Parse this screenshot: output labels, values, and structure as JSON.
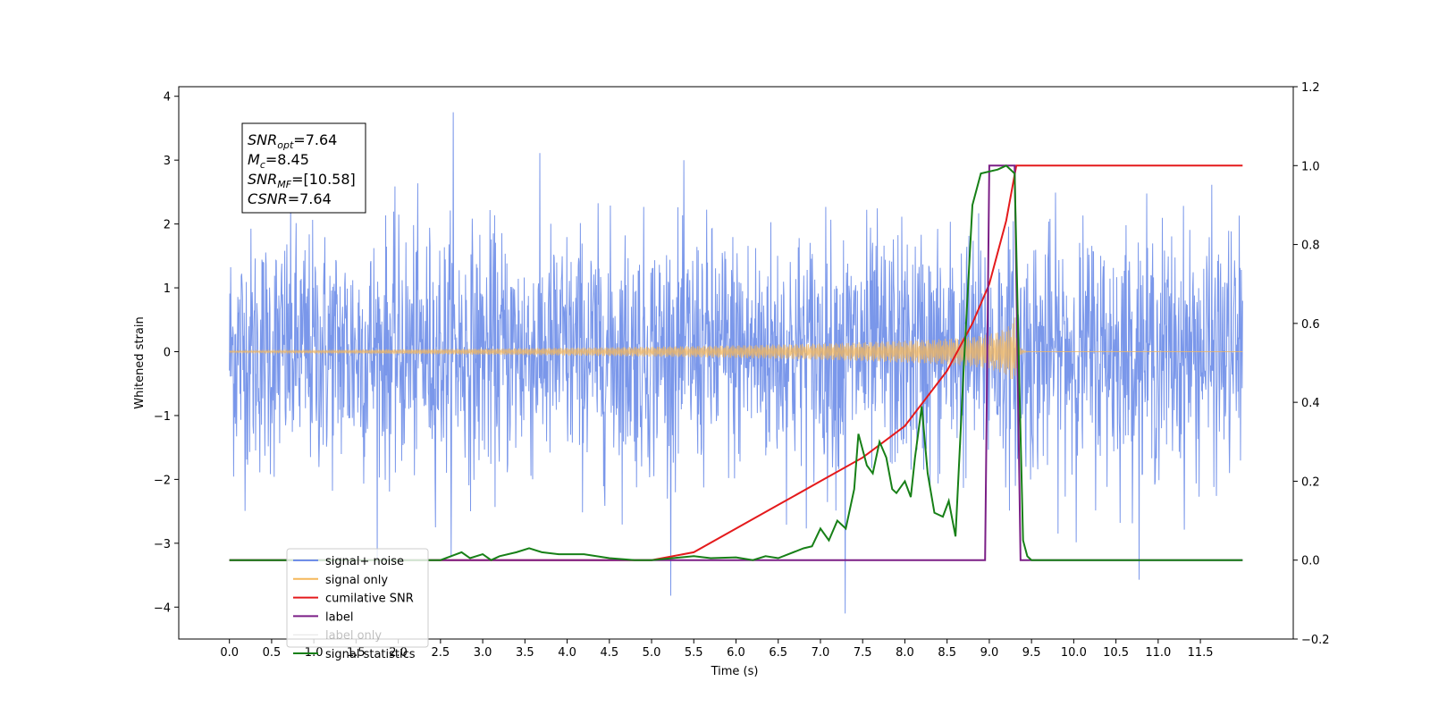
{
  "chart_data": {
    "type": "line",
    "title": "",
    "xlabel": "Time (s)",
    "ylabel": "Whitened strain",
    "xlim": [
      -0.6,
      12.6
    ],
    "ylim": [
      -4.5,
      4.15
    ],
    "y2lim": [
      -0.2,
      1.2
    ],
    "grid": false,
    "legend_position": "lower-left",
    "x_ticks": [
      "0.0",
      "0.5",
      "1.0",
      "1.5",
      "2.0",
      "2.5",
      "3.0",
      "3.5",
      "4.0",
      "4.5",
      "5.0",
      "5.5",
      "6.0",
      "6.5",
      "7.0",
      "7.5",
      "8.0",
      "8.5",
      "9.0",
      "9.5",
      "10.0",
      "10.5",
      "11.0",
      "11.5"
    ],
    "y_ticks": [
      "4",
      "3",
      "2",
      "1",
      "0",
      "−1",
      "−2",
      "−3",
      "−4"
    ],
    "y2_ticks": [
      "1.2",
      "1.0",
      "0.8",
      "0.6",
      "0.4",
      "0.2",
      "0.0",
      "−0.2"
    ],
    "annotation": [
      {
        "base": "SNR",
        "sub": "opt",
        "value": "=7.64"
      },
      {
        "base": "M",
        "sub": "c",
        "value": "=8.45"
      },
      {
        "base": "SNR",
        "sub": "MF",
        "value": "=[10.58]"
      },
      {
        "base": "CSNR",
        "sub": "",
        "value": "=7.64"
      }
    ],
    "series": [
      {
        "name": "signal+ noise",
        "color": "#6f8ee8",
        "axis": "left",
        "kind": "noise",
        "x_range": [
          0,
          12
        ],
        "std": 0.95,
        "spike_max": [
          3.75,
          -4.1
        ]
      },
      {
        "name": "signal only",
        "color": "#f5b75a",
        "axis": "left",
        "kind": "chirp",
        "x_range": [
          0,
          12
        ],
        "merger_time": 9.3,
        "peak_amplitude": 0.55
      },
      {
        "name": "cumilative SNR",
        "color": "#e41a1c",
        "axis": "right",
        "x": [
          0,
          5.0,
          5.5,
          6.0,
          6.5,
          7.0,
          7.5,
          8.0,
          8.5,
          8.8,
          9.0,
          9.2,
          9.32,
          9.35,
          12.0
        ],
        "y": [
          0,
          0,
          0.02,
          0.08,
          0.14,
          0.2,
          0.26,
          0.34,
          0.48,
          0.6,
          0.7,
          0.86,
          1.0,
          1.0,
          1.0
        ]
      },
      {
        "name": "label",
        "color": "#7b1f86",
        "axis": "right",
        "x": [
          0,
          8.95,
          9.0,
          9.3,
          9.37,
          12.0
        ],
        "y": [
          0,
          0,
          1.0,
          1.0,
          0,
          0
        ]
      },
      {
        "name": "label only",
        "color": "#bbbbbb",
        "axis": "right",
        "x": [],
        "y": []
      },
      {
        "name": "signal statistics",
        "color": "#178017",
        "axis": "right",
        "x": [
          0,
          2.5,
          2.75,
          2.85,
          3.0,
          3.1,
          3.2,
          3.4,
          3.55,
          3.7,
          3.9,
          4.2,
          4.5,
          4.8,
          5.0,
          5.5,
          5.7,
          6.0,
          6.2,
          6.35,
          6.5,
          6.8,
          6.9,
          7.0,
          7.1,
          7.2,
          7.3,
          7.4,
          7.45,
          7.55,
          7.62,
          7.7,
          7.78,
          7.85,
          7.9,
          8.0,
          8.07,
          8.12,
          8.2,
          8.27,
          8.35,
          8.45,
          8.52,
          8.6,
          8.7,
          8.8,
          8.9,
          9.1,
          9.2,
          9.3,
          9.35,
          9.4,
          9.45,
          9.5,
          11.5,
          12.0
        ],
        "y": [
          0,
          0,
          0.02,
          0.005,
          0.015,
          0,
          0.01,
          0.02,
          0.03,
          0.02,
          0.015,
          0.015,
          0.005,
          0.0,
          0.0,
          0.01,
          0.005,
          0.007,
          0.0,
          0.01,
          0.005,
          0.03,
          0.035,
          0.08,
          0.05,
          0.1,
          0.08,
          0.18,
          0.32,
          0.24,
          0.22,
          0.3,
          0.26,
          0.18,
          0.17,
          0.2,
          0.16,
          0.26,
          0.39,
          0.22,
          0.12,
          0.11,
          0.15,
          0.06,
          0.5,
          0.9,
          0.98,
          0.99,
          1.0,
          0.98,
          0.5,
          0.05,
          0.01,
          0,
          0,
          0
        ]
      }
    ]
  }
}
